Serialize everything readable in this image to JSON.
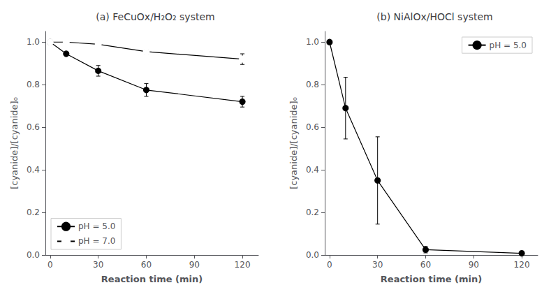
{
  "chart_data": [
    {
      "type": "line",
      "title": "(a) FeCuOx/H₂O₂ system",
      "x_label": "Reaction time (min)",
      "y_label": "[cyanide]/[cyanide]₀",
      "xlim": [
        -3,
        130
      ],
      "ylim": [
        0,
        1.05
      ],
      "xticks": [
        0,
        30,
        60,
        90,
        120
      ],
      "yticks": [
        {
          "value": 0.0,
          "label": "0.0"
        },
        0.2,
        0.4,
        0.6,
        0.8,
        {
          "value": 1.0,
          "label": "1.0"
        }
      ],
      "grid": false,
      "legend": "lower left",
      "series": [
        {
          "name": "pH = 5.0",
          "color": "#000000",
          "marker": "circle",
          "x": [
            0,
            10,
            30,
            60,
            120
          ],
          "values": [
            1.0,
            0.945,
            0.865,
            0.775,
            0.72
          ],
          "yerr": [
            0.0,
            0.0,
            0.025,
            0.03,
            0.025
          ]
        },
        {
          "name": "pH = 7.0",
          "color": "#000000",
          "marker": "open circle",
          "x": [
            0,
            10,
            30,
            60,
            120
          ],
          "values": [
            1.0,
            1.0,
            0.99,
            0.955,
            0.92
          ],
          "yerr": [
            0.0,
            0.0,
            0.005,
            0.01,
            0.025
          ]
        }
      ]
    },
    {
      "type": "line",
      "title": "(b) NiAlOx/HOCl system",
      "x_label": "Reaction time (min)",
      "y_label": "[cyanide]/[cyanide]₀",
      "xlim": [
        -3,
        130
      ],
      "ylim": [
        0,
        1.05
      ],
      "xticks": [
        0,
        30,
        60,
        90,
        120
      ],
      "yticks": [
        {
          "value": 0.0,
          "label": "0.0"
        },
        0.2,
        0.4,
        0.6,
        0.8,
        {
          "value": 1.0,
          "label": "1.0"
        }
      ],
      "grid": false,
      "legend": "upper right",
      "series": [
        {
          "name": "pH = 5.0",
          "color": "#000000",
          "marker": "circle",
          "x": [
            0,
            10,
            30,
            60,
            120
          ],
          "values": [
            1.0,
            0.69,
            0.35,
            0.025,
            0.008
          ],
          "yerr": [
            0.0,
            0.145,
            0.205,
            0.015,
            0.005
          ]
        }
      ]
    }
  ]
}
